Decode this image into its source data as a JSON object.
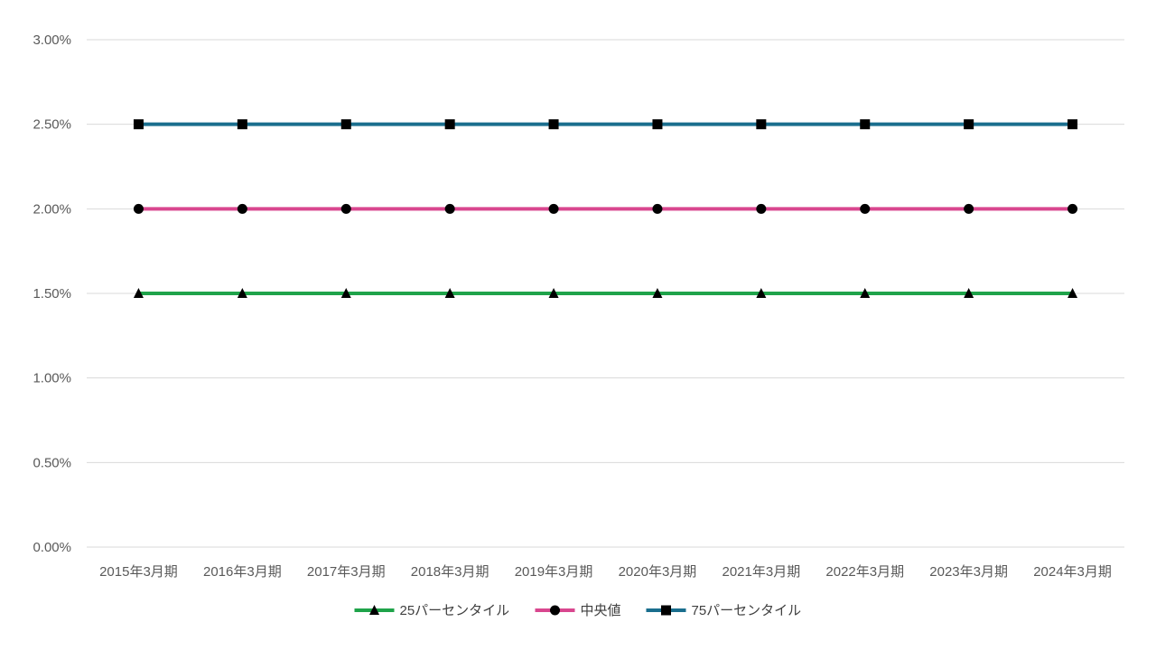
{
  "chart_data": {
    "type": "line",
    "title": "",
    "xlabel": "",
    "ylabel": "",
    "categories": [
      "2015年3月期",
      "2016年3月期",
      "2017年3月期",
      "2018年3月期",
      "2019年3月期",
      "2020年3月期",
      "2021年3月期",
      "2022年3月期",
      "2023年3月期",
      "2024年3月期"
    ],
    "ylim": [
      0,
      0.03
    ],
    "yticks": [
      0,
      0.005,
      0.01,
      0.015,
      0.02,
      0.025,
      0.03
    ],
    "ytick_labels": [
      "0.00%",
      "0.50%",
      "1.00%",
      "1.50%",
      "2.00%",
      "2.50%",
      "3.00%"
    ],
    "grid": "horizontal",
    "legend_position": "bottom",
    "series": [
      {
        "name": "25パーセンタイル",
        "values": [
          0.015,
          0.015,
          0.015,
          0.015,
          0.015,
          0.015,
          0.015,
          0.015,
          0.015,
          0.015
        ],
        "color": "#1FA34A",
        "marker": "triangle"
      },
      {
        "name": "中央値",
        "values": [
          0.02,
          0.02,
          0.02,
          0.02,
          0.02,
          0.02,
          0.02,
          0.02,
          0.02,
          0.02
        ],
        "color": "#D9478F",
        "marker": "circle"
      },
      {
        "name": "75パーセンタイル",
        "values": [
          0.025,
          0.025,
          0.025,
          0.025,
          0.025,
          0.025,
          0.025,
          0.025,
          0.025,
          0.025
        ],
        "color": "#1A6E8E",
        "marker": "square"
      }
    ]
  }
}
